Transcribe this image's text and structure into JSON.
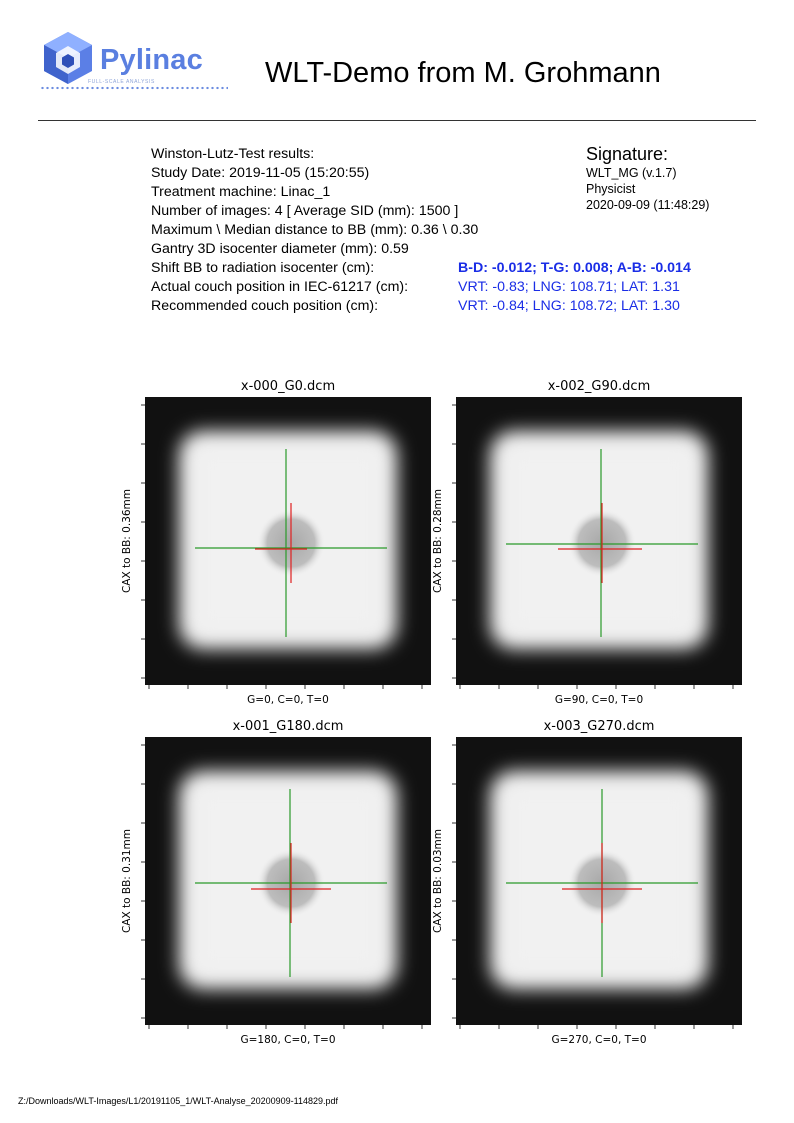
{
  "logo": {
    "word": "Pylinac",
    "tagline": "FULL-SCALE ANALYSIS",
    "icon": "pylinac-cube-logo"
  },
  "title": "WLT-Demo from M. Grohmann",
  "results": {
    "heading": "Winston-Lutz-Test results:",
    "study_date": "Study Date: 2019-11-05 (15:20:55)",
    "machine": "Treatment machine: Linac_1",
    "num_images": "Number of images: 4  [ Average SID (mm): 1500 ]",
    "max_median": "Maximum  \\  Median distance to BB (mm): 0.36  \\  0.30",
    "gantry_iso": "Gantry 3D isocenter diameter (mm): 0.59",
    "shift_label": "Shift BB to radiation isocenter (cm):",
    "shift_value": "B-D: -0.012; T-G: 0.008; A-B: -0.014",
    "actual_label": "Actual couch position in IEC-61217 (cm):",
    "actual_value": "VRT: -0.83; LNG: 108.71; LAT: 1.31",
    "recommended_label": "Recommended couch position (cm):",
    "recommended_value": "VRT: -0.84; LNG: 108.72; LAT: 1.30"
  },
  "signature": {
    "title": "Signature:",
    "version": "WLT_MG (v.1.7)",
    "role": "Physicist",
    "date": "2020-09-09 (11:48:29)"
  },
  "colors": {
    "value_blue": "#1a2de6",
    "crosshair_green": "#2a9a2a",
    "crosshair_red": "#e02020"
  },
  "images": [
    {
      "title": "x-000_G0.dcm",
      "ylabel": "CAX to BB: 0.36mm",
      "xlabel": "G=0, C=0, T=0",
      "bb_offset": [
        0.0,
        0.0
      ],
      "cax_offset": [
        -0.5,
        0.5
      ],
      "green_h_x": [
        -2.4,
        2.4
      ],
      "red_h_x": [
        -0.9,
        0.4
      ],
      "red_v_y": [
        -1.0,
        1.0
      ]
    },
    {
      "title": "x-002_G90.dcm",
      "ylabel": "CAX to BB: 0.28mm",
      "xlabel": "G=90, C=0, T=0",
      "bb_offset": [
        0.0,
        0.0
      ],
      "cax_offset": [
        -0.1,
        0.1
      ],
      "green_h_x": [
        -2.4,
        2.4
      ],
      "red_h_x": [
        -1.1,
        1.0
      ],
      "red_v_y": [
        -1.0,
        1.0
      ]
    },
    {
      "title": "x-001_G180.dcm",
      "ylabel": "CAX to BB: 0.31mm",
      "xlabel": "G=180, C=0, T=0",
      "bb_offset": [
        0.0,
        0.0
      ],
      "cax_offset": [
        -0.1,
        0.0
      ],
      "green_h_x": [
        -2.4,
        2.4
      ],
      "red_h_x": [
        -1.0,
        1.0
      ],
      "red_v_y": [
        -1.0,
        1.0
      ]
    },
    {
      "title": "x-003_G270.dcm",
      "ylabel": "CAX to BB: 0.03mm",
      "xlabel": "G=270, C=0, T=0",
      "bb_offset": [
        0.0,
        0.0
      ],
      "cax_offset": [
        0.0,
        0.0
      ],
      "green_h_x": [
        -2.4,
        2.4
      ],
      "red_h_x": [
        -1.0,
        1.0
      ],
      "red_v_y": [
        -1.0,
        1.0
      ]
    }
  ],
  "footer": "Z:/Downloads/WLT-Images/L1/20191105_1/WLT-Analyse_20200909-114829.pdf"
}
